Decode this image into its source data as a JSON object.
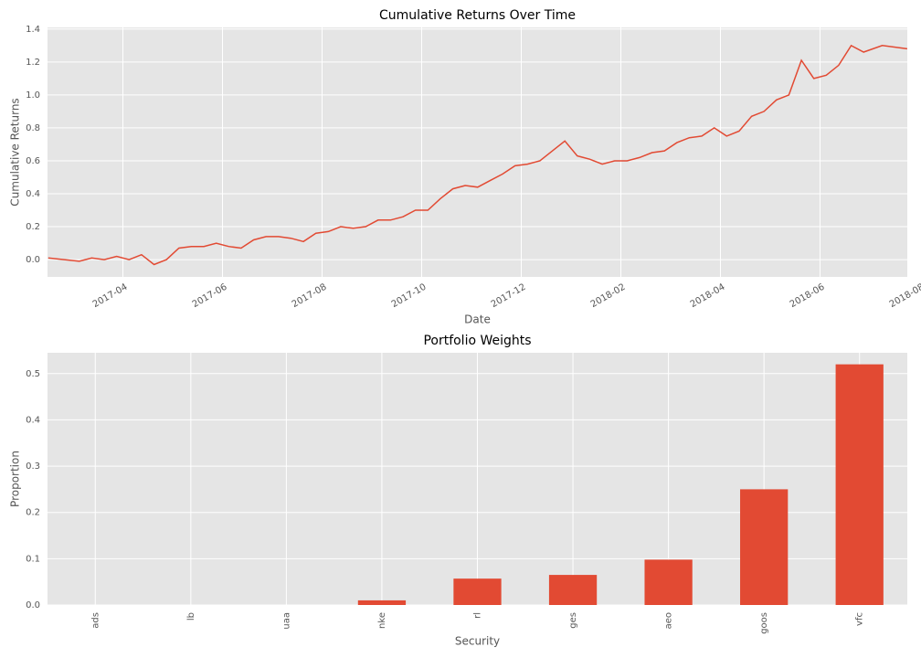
{
  "chart_data": [
    {
      "type": "line",
      "title": "Cumulative Returns Over Time",
      "x_label": "Date",
      "y_label": "Cumulative Returns",
      "color": "#E24A33",
      "grid": true,
      "x": [
        "2017-03",
        "2017-04",
        "2017-04",
        "2017-04",
        "2017-04",
        "2017-05",
        "2017-05",
        "2017-05",
        "2017-05",
        "2017-06",
        "2017-06",
        "2017-06",
        "2017-06",
        "2017-07",
        "2017-07",
        "2017-07",
        "2017-07",
        "2017-08",
        "2017-08",
        "2017-08",
        "2017-08",
        "2017-09",
        "2017-09",
        "2017-09",
        "2017-09",
        "2017-10",
        "2017-10",
        "2017-10",
        "2017-10",
        "2017-11",
        "2017-11",
        "2017-11",
        "2017-11",
        "2017-12",
        "2017-12",
        "2017-12",
        "2017-12",
        "2018-01",
        "2018-01",
        "2018-01",
        "2018-01",
        "2018-02",
        "2018-02",
        "2018-02",
        "2018-02",
        "2018-03",
        "2018-03",
        "2018-03",
        "2018-03",
        "2018-04",
        "2018-04",
        "2018-04",
        "2018-04",
        "2018-05",
        "2018-05",
        "2018-05",
        "2018-05",
        "2018-06",
        "2018-06",
        "2018-06",
        "2018-06",
        "2018-07",
        "2018-07",
        "2018-07",
        "2018-07",
        "2018-08",
        "2018-08"
      ],
      "values": [
        0.01,
        -0.01,
        0.01,
        0.0,
        0.02,
        0.0,
        0.03,
        -0.03,
        0.0,
        0.07,
        0.08,
        0.08,
        0.1,
        0.08,
        0.07,
        0.12,
        0.14,
        0.14,
        0.13,
        0.11,
        0.16,
        0.17,
        0.2,
        0.19,
        0.2,
        0.24,
        0.24,
        0.26,
        0.3,
        0.3,
        0.37,
        0.43,
        0.45,
        0.44,
        0.48,
        0.52,
        0.57,
        0.58,
        0.6,
        0.66,
        0.72,
        0.63,
        0.61,
        0.58,
        0.6,
        0.6,
        0.62,
        0.65,
        0.66,
        0.71,
        0.74,
        0.75,
        0.8,
        0.75,
        0.78,
        0.87,
        0.9,
        0.97,
        1.0,
        1.21,
        1.1,
        1.12,
        1.18,
        1.3,
        1.26,
        1.3,
        1.28
      ],
      "xticks": [
        "2017-04",
        "2017-06",
        "2017-08",
        "2017-10",
        "2017-12",
        "2018-02",
        "2018-04",
        "2018-06",
        "2018-08"
      ],
      "ylim": [
        -0.105,
        1.41
      ],
      "yticks": [
        {
          "value": 0,
          "label": "0.0"
        },
        0.2,
        0.4,
        0.6,
        0.8,
        {
          "value": 1,
          "label": "1.0"
        },
        1.2,
        1.4
      ]
    },
    {
      "type": "bar",
      "title": "Portfolio Weights",
      "x_label": "Security",
      "y_label": "Proportion",
      "color": "#E24A33",
      "grid": true,
      "categories": [
        "ads",
        "lb",
        "uaa",
        "nke",
        "rl",
        "ges",
        "aeo",
        "goos",
        "vfc"
      ],
      "values": [
        0,
        0,
        0,
        0.01,
        0.057,
        0.065,
        0.098,
        0.25,
        0.52
      ],
      "ylim": [
        0,
        0.545
      ],
      "yticks": [
        {
          "value": 0,
          "label": "0.0"
        },
        0.1,
        0.2,
        0.3,
        0.4,
        0.5
      ]
    }
  ]
}
